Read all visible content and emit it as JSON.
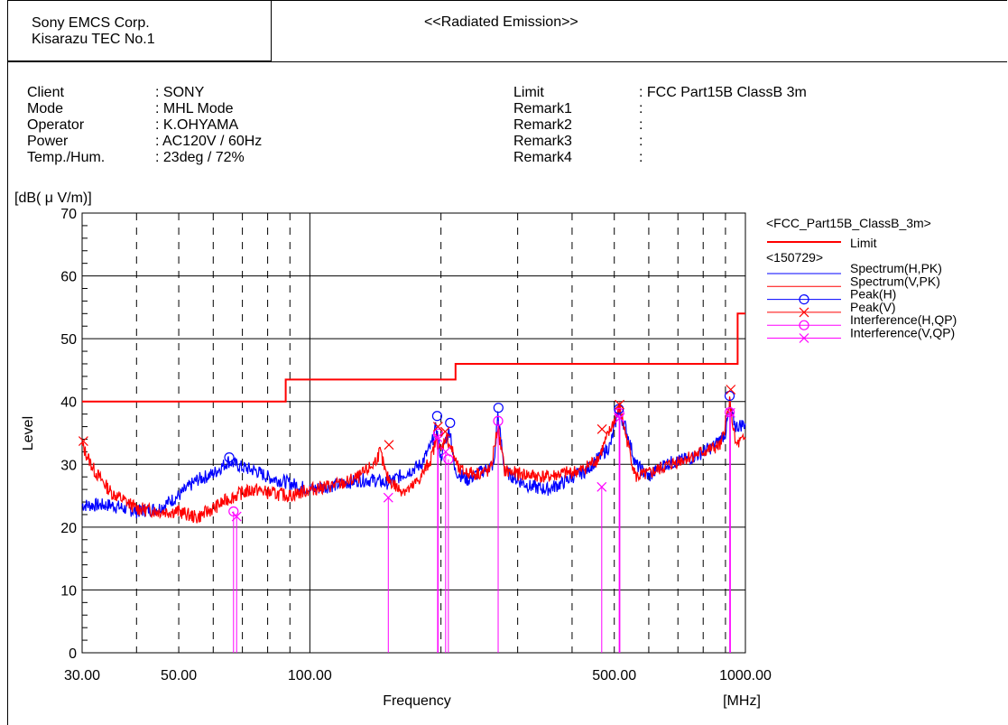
{
  "header": {
    "company_line1": "Sony EMCS Corp.",
    "company_line2": "Kisarazu TEC No.1",
    "title": "<<Radiated Emission>>"
  },
  "info_left": [
    {
      "label": "Client",
      "value": ": SONY"
    },
    {
      "label": "Mode",
      "value": ": MHL Mode"
    },
    {
      "label": "Operator",
      "value": ": K.OHYAMA"
    },
    {
      "label": "Power",
      "value": ": AC120V / 60Hz"
    },
    {
      "label": "Temp./Hum.",
      "value": ": 23deg / 72%"
    }
  ],
  "info_right": [
    {
      "label": "Limit",
      "value": ": FCC Part15B ClassB 3m"
    },
    {
      "label": "Remark1",
      "value": ":"
    },
    {
      "label": "Remark2",
      "value": ":"
    },
    {
      "label": "Remark3",
      "value": ":"
    },
    {
      "label": "Remark4",
      "value": ":"
    }
  ],
  "colors": {
    "blue": "#0000ff",
    "red": "#ff0000",
    "magenta": "#ff00ff",
    "limit": "#ff0000"
  },
  "chart_data": {
    "type": "line",
    "title": "",
    "ylabel": "Level",
    "yunit": "[dB( μ V/m)]",
    "xlabel": "Frequency",
    "xunit": "[MHz]",
    "xscale": "log",
    "xlim": [
      30,
      1000
    ],
    "ylim": [
      0,
      70
    ],
    "xtick_labels": [
      {
        "value": 30,
        "label": "30.00"
      },
      {
        "value": 50,
        "label": "50.00"
      },
      {
        "value": 100,
        "label": "100.00"
      },
      {
        "value": 500,
        "label": "500.00"
      },
      {
        "value": 1000,
        "label": "1000.00"
      }
    ],
    "ytick_labels": [
      0,
      10,
      20,
      30,
      40,
      50,
      60,
      70
    ],
    "grid": true,
    "legend_position": "right",
    "legend": {
      "group1": "<FCC_Part15B_ClassB_3m>",
      "group2": "<150729>",
      "entries": [
        {
          "name": "Limit",
          "color": "#ff0000",
          "marker": "none",
          "group": 1
        },
        {
          "name": "Spectrum(H,PK)",
          "color": "#0000ff",
          "marker": "none",
          "group": 2
        },
        {
          "name": "Spectrum(V,PK)",
          "color": "#ff0000",
          "marker": "none",
          "group": 2
        },
        {
          "name": "Peak(H)",
          "color": "#0000ff",
          "marker": "circle",
          "group": 2
        },
        {
          "name": "Peak(V)",
          "color": "#ff0000",
          "marker": "x",
          "group": 2
        },
        {
          "name": "Interference(H,QP)",
          "color": "#ff00ff",
          "marker": "circle",
          "group": 2
        },
        {
          "name": "Interference(V,QP)",
          "color": "#ff00ff",
          "marker": "x",
          "group": 2
        }
      ]
    },
    "series": [
      {
        "name": "Limit",
        "step": true,
        "points": [
          [
            30,
            40
          ],
          [
            88,
            40
          ],
          [
            88,
            43.5
          ],
          [
            216,
            43.5
          ],
          [
            216,
            46
          ],
          [
            960,
            46
          ],
          [
            960,
            54
          ],
          [
            1000,
            54
          ]
        ]
      },
      {
        "name": "Spectrum(H,PK)",
        "points": [
          [
            30,
            23.5
          ],
          [
            35,
            23.5
          ],
          [
            40,
            22.5
          ],
          [
            45,
            23
          ],
          [
            50,
            25
          ],
          [
            55,
            27.5
          ],
          [
            60,
            28.5
          ],
          [
            65,
            30.5
          ],
          [
            70,
            29.5
          ],
          [
            75,
            29
          ],
          [
            80,
            28
          ],
          [
            90,
            27
          ],
          [
            100,
            26
          ],
          [
            110,
            26.5
          ],
          [
            120,
            27
          ],
          [
            130,
            27.5
          ],
          [
            140,
            27.5
          ],
          [
            150,
            27
          ],
          [
            160,
            28
          ],
          [
            170,
            29
          ],
          [
            180,
            30
          ],
          [
            190,
            33
          ],
          [
            195,
            36
          ],
          [
            200,
            31
          ],
          [
            205,
            34
          ],
          [
            210,
            35.5
          ],
          [
            215,
            29
          ],
          [
            230,
            27.5
          ],
          [
            250,
            29
          ],
          [
            265,
            30
          ],
          [
            270,
            38
          ],
          [
            280,
            29
          ],
          [
            300,
            27.5
          ],
          [
            320,
            26.5
          ],
          [
            350,
            26
          ],
          [
            380,
            27
          ],
          [
            400,
            28
          ],
          [
            430,
            29
          ],
          [
            460,
            31
          ],
          [
            490,
            33
          ],
          [
            510,
            38.5
          ],
          [
            530,
            36
          ],
          [
            560,
            30
          ],
          [
            600,
            28
          ],
          [
            650,
            30
          ],
          [
            700,
            30.5
          ],
          [
            750,
            31
          ],
          [
            800,
            32
          ],
          [
            850,
            33
          ],
          [
            900,
            35
          ],
          [
            920,
            39
          ],
          [
            950,
            36
          ],
          [
            1000,
            36.5
          ]
        ]
      },
      {
        "name": "Spectrum(V,PK)",
        "points": [
          [
            30,
            33
          ],
          [
            32,
            29
          ],
          [
            35,
            25.5
          ],
          [
            38,
            24
          ],
          [
            40,
            23
          ],
          [
            45,
            22.5
          ],
          [
            50,
            22.5
          ],
          [
            55,
            21.5
          ],
          [
            60,
            23
          ],
          [
            65,
            24.5
          ],
          [
            70,
            25.5
          ],
          [
            75,
            26
          ],
          [
            80,
            25.5
          ],
          [
            90,
            25
          ],
          [
            100,
            26
          ],
          [
            110,
            26.5
          ],
          [
            120,
            27
          ],
          [
            130,
            28
          ],
          [
            140,
            30
          ],
          [
            145,
            32
          ],
          [
            150,
            28
          ],
          [
            160,
            26
          ],
          [
            170,
            26
          ],
          [
            180,
            28
          ],
          [
            190,
            31
          ],
          [
            195,
            34
          ],
          [
            200,
            32
          ],
          [
            205,
            34.5
          ],
          [
            210,
            33
          ],
          [
            220,
            29
          ],
          [
            240,
            28.5
          ],
          [
            260,
            29
          ],
          [
            270,
            36
          ],
          [
            280,
            29
          ],
          [
            300,
            28.5
          ],
          [
            350,
            28
          ],
          [
            380,
            28.5
          ],
          [
            420,
            29
          ],
          [
            460,
            31
          ],
          [
            480,
            34
          ],
          [
            500,
            37
          ],
          [
            515,
            39
          ],
          [
            530,
            35
          ],
          [
            560,
            28
          ],
          [
            600,
            28.5
          ],
          [
            700,
            30.5
          ],
          [
            800,
            32
          ],
          [
            880,
            33
          ],
          [
            920,
            40
          ],
          [
            950,
            33
          ],
          [
            1000,
            34
          ]
        ]
      },
      {
        "name": "Peak(H)",
        "points": [
          [
            65.3,
            31.1
          ],
          [
            196.0,
            37.7
          ],
          [
            209.9,
            36.6
          ],
          [
            271.0,
            39.0
          ],
          [
            512.1,
            38.8
          ],
          [
            919.9,
            40.9
          ]
        ]
      },
      {
        "name": "Peak(V)",
        "points": [
          [
            30.2,
            33.7
          ],
          [
            151.9,
            33.1
          ],
          [
            196.9,
            36.0
          ],
          [
            204.5,
            35.2
          ],
          [
            468.6,
            35.6
          ],
          [
            514.1,
            39.5
          ],
          [
            925.5,
            41.9
          ]
        ]
      },
      {
        "name": "Interference(H,QP)",
        "points": [
          [
            66.8,
            22.5
          ],
          [
            197.0,
            34.9
          ],
          [
            208.0,
            30.8
          ],
          [
            270.6,
            36.9
          ],
          [
            513.1,
            38.2
          ],
          [
            920.5,
            38.3
          ]
        ]
      },
      {
        "name": "Interference(V,QP)",
        "points": [
          [
            67.9,
            21.7
          ],
          [
            151.4,
            24.7
          ],
          [
            196.5,
            34.3
          ],
          [
            205.0,
            32.0
          ],
          [
            467.9,
            26.4
          ],
          [
            515.0,
            37.4
          ],
          [
            923.8,
            38.2
          ]
        ]
      }
    ]
  }
}
